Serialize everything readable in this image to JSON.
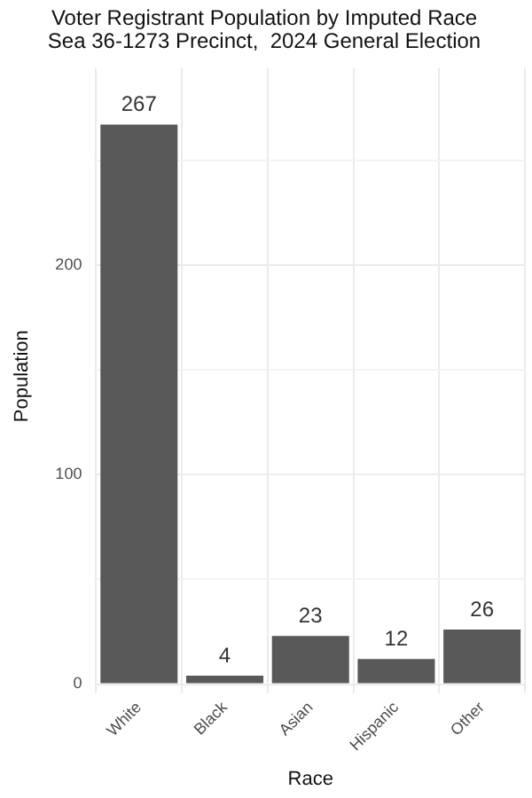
{
  "chart_data": {
    "type": "bar",
    "title": "Voter Registrant Population by Imputed Race\nSea 36-1273 Precinct,  2024 General Election",
    "xlabel": "Race",
    "ylabel": "Population",
    "categories": [
      "White",
      "Black",
      "Asian",
      "Hispanic",
      "Other"
    ],
    "values": [
      267,
      4,
      23,
      12,
      26
    ],
    "color": "#595959",
    "ylim": [
      0,
      294
    ],
    "yticks": [
      0,
      {
        "value": 50,
        "label": null
      },
      100,
      {
        "value": 150,
        "label": null
      },
      200,
      {
        "value": 250,
        "label": null
      }
    ],
    "grid": true,
    "data_labels": true,
    "legend": false
  }
}
